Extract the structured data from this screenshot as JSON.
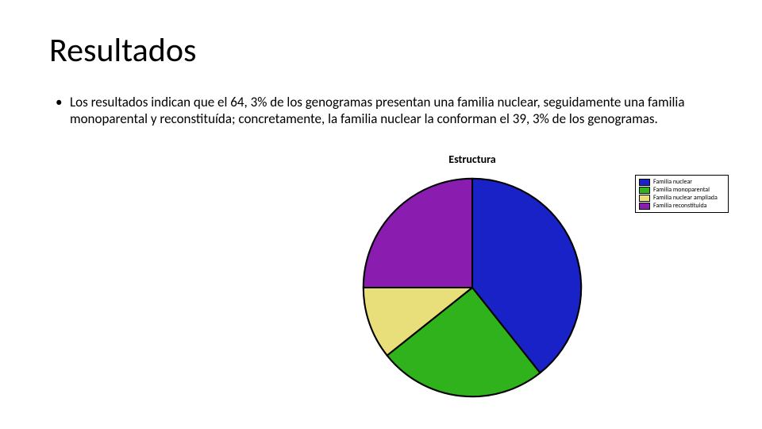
{
  "title": "Resultados",
  "bullet": {
    "marker": "•",
    "text": "Los resultados indican que el 64, 3% de los genogramas presentan una familia nuclear, seguidamente una familia monoparental y reconstituída; concretamente, la familia nuclear la conforman el 39, 3% de los genogramas."
  },
  "chart": {
    "type": "pie",
    "title": "Estructura",
    "title_fontsize": 14,
    "background_color": "#ffffff",
    "outline_color": "#000000",
    "outline_width": 1.5,
    "slices": [
      {
        "label": "Familia nuclear",
        "value": 39.3,
        "color": "#1822c6"
      },
      {
        "label": "Familia monoparental",
        "value": 25.0,
        "color": "#2fb21c"
      },
      {
        "label": "Familia nuclear ampliada",
        "value": 10.7,
        "color": "#e9df7a"
      },
      {
        "label": "Familia reconstituida",
        "value": 25.0,
        "color": "#8a1db0"
      }
    ],
    "start_angle_deg": -90,
    "legend": {
      "position": "right-top",
      "border_color": "#000000",
      "font_size": 8
    }
  }
}
